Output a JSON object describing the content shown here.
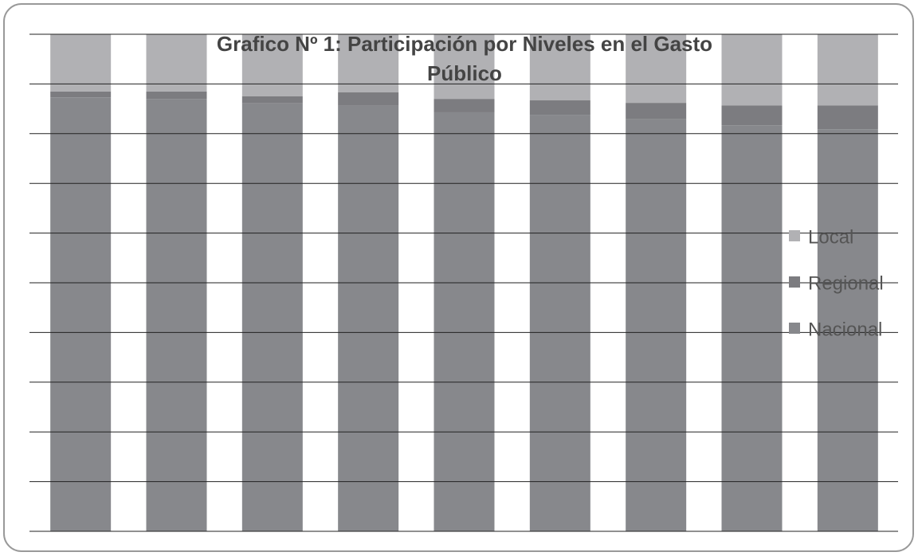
{
  "chart_data": {
    "type": "stacked_bar",
    "title": "Grafico Nº 1: Participación por Niveles en el Gasto Público",
    "categories": [
      null,
      null,
      null,
      null,
      null,
      null,
      null,
      null,
      null
    ],
    "series": [
      {
        "name": "Nacional",
        "color": "#87888c",
        "values": [
          87.3,
          87.0,
          86.1,
          85.6,
          84.3,
          83.8,
          82.9,
          81.7,
          80.9
        ]
      },
      {
        "name": "Regional",
        "color": "#7c7c80",
        "values": [
          1.2,
          1.5,
          1.4,
          2.7,
          2.7,
          2.9,
          3.3,
          4.0,
          4.8
        ]
      },
      {
        "name": "Local",
        "color": "#b1b1b4",
        "values": [
          11.5,
          11.5,
          12.5,
          11.7,
          13.0,
          13.3,
          13.8,
          14.3,
          14.3
        ]
      }
    ],
    "ylim": [
      0,
      100
    ],
    "yticks": [
      0,
      10,
      20,
      30,
      40,
      50,
      60,
      70,
      80,
      90,
      100
    ],
    "grid": true,
    "legend": "right"
  }
}
